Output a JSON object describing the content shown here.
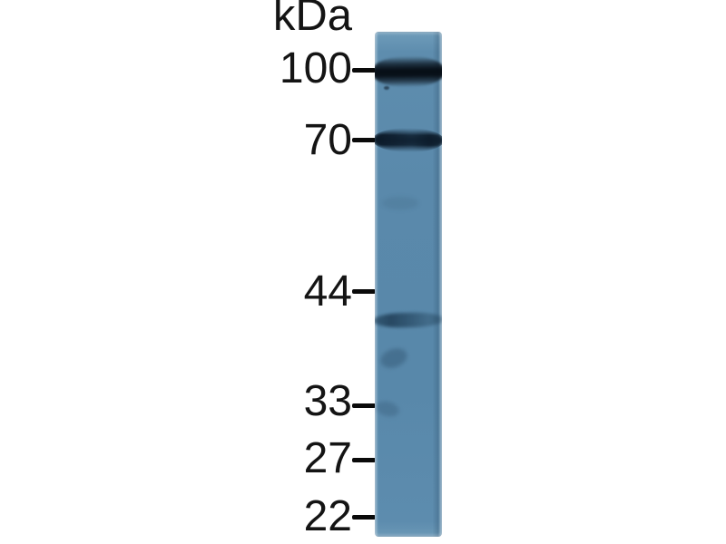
{
  "figure": {
    "type": "western-blot",
    "unit_label": "kDa",
    "markers": [
      {
        "label": "100",
        "kda": 100
      },
      {
        "label": "70",
        "kda": 70
      },
      {
        "label": "44",
        "kda": 44
      },
      {
        "label": "33",
        "kda": 33
      },
      {
        "label": "27",
        "kda": 27
      },
      {
        "label": "22",
        "kda": 22
      }
    ],
    "lane_count": 1,
    "bands": [
      {
        "approx_kda": "100",
        "intensity": "strong"
      },
      {
        "approx_kda": "70",
        "intensity": "medium"
      },
      {
        "approx_kda": "40",
        "intensity": "weak"
      }
    ],
    "colors": {
      "background": "#ffffff",
      "membrane_blue": "#5989ab",
      "band_dark": "#0a141d",
      "label_text": "#141414"
    }
  }
}
